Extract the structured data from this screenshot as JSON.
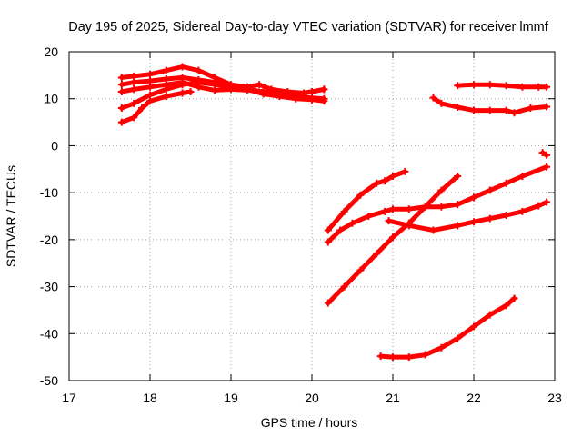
{
  "chart_data": {
    "type": "line",
    "title": "Day 195 of 2025, Sidereal Day-to-day VTEC variation (SDTVAR) for receiver lmmf",
    "xlabel": "GPS time / hours",
    "ylabel": "SDTVAR / TECUs",
    "xlim": [
      17,
      23
    ],
    "ylim": [
      -50,
      20
    ],
    "x_ticks": [
      "17",
      "18",
      "19",
      "20",
      "21",
      "22",
      "23"
    ],
    "y_ticks": [
      "20",
      "10",
      "0",
      "-10",
      "-20",
      "-30",
      "-40",
      "-50"
    ],
    "grid": true,
    "legend": "none",
    "series_color": "#ff0000",
    "series": [
      {
        "x": [
          17.65,
          17.8,
          18.0,
          18.2,
          18.4,
          18.6,
          18.8,
          19.0,
          19.2,
          19.4,
          19.6,
          19.8,
          20.0,
          20.15
        ],
        "y": [
          14.5,
          14.8,
          15.2,
          16.0,
          16.8,
          16.0,
          14.5,
          13.0,
          12.0,
          11.0,
          10.5,
          10.0,
          9.8,
          9.5
        ]
      },
      {
        "x": [
          17.65,
          17.8,
          18.0,
          18.2,
          18.4,
          18.6,
          18.8,
          19.0,
          19.2,
          19.35,
          19.5,
          19.7,
          19.9,
          20.15
        ],
        "y": [
          13.0,
          13.5,
          13.8,
          14.2,
          14.5,
          14.0,
          13.5,
          13.0,
          12.5,
          13.0,
          12.0,
          11.5,
          11.2,
          12.0
        ]
      },
      {
        "x": [
          17.65,
          17.8,
          18.0,
          18.2,
          18.4,
          18.6,
          18.8,
          19.0,
          19.2,
          19.4,
          19.6,
          19.8,
          20.0,
          20.15
        ],
        "y": [
          11.5,
          12.0,
          12.5,
          13.0,
          13.5,
          12.5,
          11.8,
          12.0,
          11.8,
          11.5,
          11.0,
          11.0,
          11.5,
          12.0
        ]
      },
      {
        "x": [
          17.65,
          17.8,
          18.0,
          18.2,
          18.4,
          18.6,
          18.8,
          19.0,
          19.2,
          19.4,
          19.6,
          19.8,
          20.0,
          20.15
        ],
        "y": [
          8.0,
          9.0,
          10.8,
          12.0,
          13.0,
          13.5,
          13.0,
          12.5,
          12.0,
          11.5,
          11.0,
          10.5,
          10.2,
          10.0
        ]
      },
      {
        "x": [
          17.65,
          17.8,
          17.9,
          18.0,
          18.2,
          18.4,
          18.5
        ],
        "y": [
          5.0,
          6.0,
          8.0,
          9.5,
          10.5,
          11.2,
          11.5
        ]
      },
      {
        "x": [
          21.8,
          22.0,
          22.2,
          22.4,
          22.6,
          22.8,
          22.9
        ],
        "y": [
          12.8,
          13.0,
          13.0,
          12.8,
          12.5,
          12.5,
          12.5
        ]
      },
      {
        "x": [
          21.5,
          21.6,
          21.8,
          22.0,
          22.2,
          22.4,
          22.5,
          22.7,
          22.9
        ],
        "y": [
          10.2,
          9.0,
          8.2,
          7.5,
          7.5,
          7.5,
          7.0,
          8.0,
          8.3
        ]
      },
      {
        "x": [
          22.85,
          22.9
        ],
        "y": [
          -1.5,
          -2.0
        ]
      },
      {
        "x": [
          20.2,
          20.4,
          20.6,
          20.8,
          20.9,
          21.0,
          21.15
        ],
        "y": [
          -18.0,
          -14.0,
          -10.5,
          -8.0,
          -7.5,
          -6.5,
          -5.5
        ]
      },
      {
        "x": [
          20.2,
          20.35,
          20.5,
          20.7,
          20.9,
          21.0,
          21.2,
          21.4,
          21.6,
          21.8,
          22.0,
          22.2,
          22.4,
          22.6,
          22.9
        ],
        "y": [
          -20.5,
          -18.0,
          -16.5,
          -15.0,
          -14.0,
          -13.5,
          -13.5,
          -13.0,
          -13.0,
          -12.5,
          -11.0,
          -9.5,
          -8.0,
          -6.5,
          -4.5
        ]
      },
      {
        "x": [
          20.2,
          20.4,
          20.6,
          20.8,
          21.0,
          21.2,
          21.4,
          21.6,
          21.8
        ],
        "y": [
          -33.5,
          -30.0,
          -26.5,
          -23.0,
          -19.5,
          -16.5,
          -13.0,
          -9.5,
          -6.5
        ]
      },
      {
        "x": [
          20.95,
          21.2,
          21.5,
          21.8,
          22.0,
          22.2,
          22.4,
          22.6,
          22.8,
          22.9
        ],
        "y": [
          -16.0,
          -17.0,
          -18.0,
          -17.0,
          -16.2,
          -15.5,
          -14.8,
          -14.0,
          -12.8,
          -12.0
        ]
      },
      {
        "x": [
          20.85,
          21.0,
          21.2,
          21.4,
          21.6,
          21.8,
          22.0,
          22.2,
          22.4,
          22.5
        ],
        "y": [
          -44.8,
          -45.0,
          -45.0,
          -44.5,
          -43.0,
          -41.0,
          -38.5,
          -36.0,
          -34.0,
          -32.5
        ]
      }
    ]
  }
}
